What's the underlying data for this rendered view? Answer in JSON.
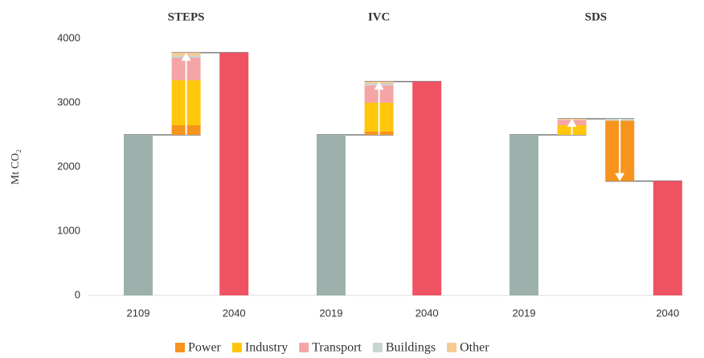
{
  "chart_data": {
    "type": "waterfall",
    "y_axis_label": "Mt CO₂",
    "ylim": [
      0,
      4000
    ],
    "yticks": [
      0,
      1000,
      2000,
      3000,
      4000
    ],
    "start_color": "#9cb1ab",
    "end_color": "#ef5362",
    "legend": [
      {
        "name": "Power",
        "color": "#f7941d"
      },
      {
        "name": "Industry",
        "color": "#ffc60b"
      },
      {
        "name": "Transport",
        "color": "#f5a5a5"
      },
      {
        "name": "Buildings",
        "color": "#c9d5d2"
      },
      {
        "name": "Other",
        "color": "#f6cb94"
      }
    ],
    "panels": [
      {
        "title": "STEPS",
        "start": {
          "label": "2109",
          "value": 2500
        },
        "steps": [
          [
            {
              "series": 0,
              "value": 150
            },
            {
              "series": 1,
              "value": 700
            },
            {
              "series": 2,
              "value": 350
            },
            {
              "series": 3,
              "value": 30
            },
            {
              "series": 4,
              "value": 50
            }
          ]
        ],
        "end": {
          "label": "2040",
          "value": 3780
        }
      },
      {
        "title": "IVC",
        "start": {
          "label": "2019",
          "value": 2500
        },
        "steps": [
          [
            {
              "series": 0,
              "value": 50
            },
            {
              "series": 1,
              "value": 450
            },
            {
              "series": 2,
              "value": 270
            },
            {
              "series": 3,
              "value": 30
            },
            {
              "series": 4,
              "value": 30
            }
          ]
        ],
        "end": {
          "label": "2040",
          "value": 3330
        }
      },
      {
        "title": "SDS",
        "start": {
          "label": "2019",
          "value": 2500
        },
        "steps": [
          [
            {
              "series": 1,
              "value": 150
            },
            {
              "series": 2,
              "value": 80
            },
            {
              "series": 4,
              "value": 20
            }
          ],
          [
            {
              "series": 3,
              "value": -30
            },
            {
              "series": 0,
              "value": -940
            }
          ]
        ],
        "end": {
          "label": "2040",
          "value": 1780
        }
      }
    ]
  }
}
